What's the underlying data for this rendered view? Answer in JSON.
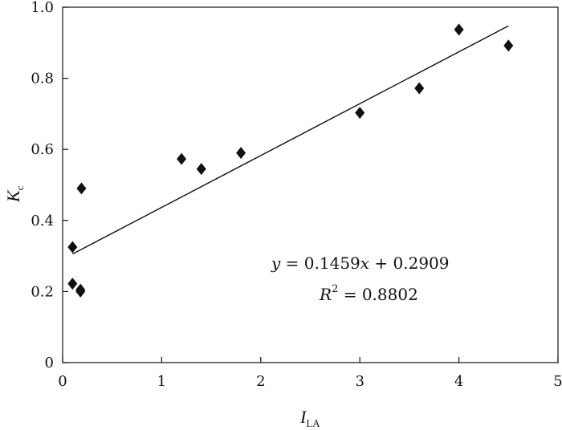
{
  "chart_data": {
    "type": "scatter",
    "title": "",
    "xlabel": {
      "main": "I",
      "sub": "LA"
    },
    "ylabel": {
      "main": "K",
      "sub": "c"
    },
    "xlim": [
      0,
      5
    ],
    "ylim": [
      0,
      1.0
    ],
    "xticks": [
      0,
      1,
      2,
      3,
      4,
      5
    ],
    "xtick_labels": [
      "0",
      "1",
      "2",
      "3",
      "4",
      "5"
    ],
    "yticks": [
      0,
      0.2,
      0.4,
      0.6,
      0.8,
      1.0
    ],
    "ytick_labels": [
      "0",
      "0.2",
      "0.4",
      "0.6",
      "0.8",
      "1.0"
    ],
    "grid": false,
    "marker": "diamond",
    "marker_color": "#111111",
    "points": [
      {
        "x": 0.1,
        "y": 0.325
      },
      {
        "x": 0.1,
        "y": 0.222
      },
      {
        "x": 0.18,
        "y": 0.205
      },
      {
        "x": 0.18,
        "y": 0.2
      },
      {
        "x": 0.19,
        "y": 0.49
      },
      {
        "x": 1.2,
        "y": 0.573
      },
      {
        "x": 1.4,
        "y": 0.545
      },
      {
        "x": 1.8,
        "y": 0.59
      },
      {
        "x": 3.0,
        "y": 0.703
      },
      {
        "x": 3.6,
        "y": 0.772
      },
      {
        "x": 4.0,
        "y": 0.937
      },
      {
        "x": 4.5,
        "y": 0.892
      }
    ],
    "fit_line": {
      "slope": 0.1459,
      "intercept": 0.2909,
      "x_range": [
        0.1,
        4.5
      ]
    },
    "annotations": {
      "equation": {
        "y": "y",
        "eq1": " = 0.1459",
        "x": "x",
        "eq2": " + 0.2909"
      },
      "r2": {
        "r": "R",
        "exp": "2",
        "eq": " = 0.8802"
      }
    }
  }
}
